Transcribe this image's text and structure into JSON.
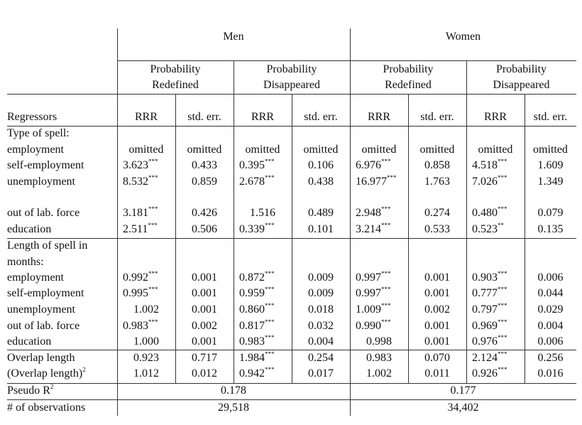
{
  "header": {
    "groups": [
      "Men",
      "Women"
    ],
    "subgroups": [
      [
        "Probability",
        "Redefined"
      ],
      [
        "Probability",
        "Disappeared"
      ],
      [
        "Probability",
        "Redefined"
      ],
      [
        "Probability",
        "Disappeared"
      ]
    ],
    "columns": [
      "Regressors",
      "RRR",
      "std. err.",
      "RRR",
      "std. err.",
      "RRR",
      "std. err.",
      "RRR",
      "std. err."
    ]
  },
  "rows": [
    {
      "label": "Type of spell:"
    },
    {
      "label": "employment",
      "cells": [
        "omitted",
        "omitted",
        "omitted",
        "omitted",
        "omitted",
        "omitted",
        "omitted",
        "omitted"
      ]
    },
    {
      "label": "self-employment",
      "cells": [
        {
          "v": "3.623",
          "s": "***"
        },
        "0.433",
        {
          "v": "0.395",
          "s": "***"
        },
        "0.106",
        {
          "v": "6.976",
          "s": "***"
        },
        "0.858",
        {
          "v": "4.518",
          "s": "***"
        },
        "1.609"
      ]
    },
    {
      "label": "unemployment",
      "cells": [
        {
          "v": "8.532",
          "s": "***"
        },
        "0.859",
        {
          "v": "2.678",
          "s": "***"
        },
        "0.438",
        {
          "v": "16.977",
          "s": "***"
        },
        "1.763",
        {
          "v": "7.026",
          "s": "***"
        },
        "1.349"
      ]
    },
    {
      "label": "out of lab. force",
      "cells": [
        {
          "v": "3.181",
          "s": "***"
        },
        "0.426",
        "1.516",
        "0.489",
        {
          "v": "2.948",
          "s": "***"
        },
        "0.274",
        {
          "v": "0.480",
          "s": "***"
        },
        "0.079"
      ]
    },
    {
      "label": "education",
      "cells": [
        {
          "v": "2.511",
          "s": "***"
        },
        "0.506",
        {
          "v": "0.339",
          "s": "***"
        },
        "0.101",
        {
          "v": "3.214",
          "s": "***"
        },
        "0.533",
        {
          "v": "0.523",
          "s": "**"
        },
        "0.135"
      ]
    },
    {
      "label": [
        "Length of spell in",
        "months:"
      ]
    },
    {
      "label": "employment",
      "cells": [
        {
          "v": "0.992",
          "s": "***"
        },
        "0.001",
        {
          "v": "0.872",
          "s": "***"
        },
        "0.009",
        {
          "v": "0.997",
          "s": "***"
        },
        "0.001",
        {
          "v": "0.903",
          "s": "***"
        },
        "0.006"
      ]
    },
    {
      "label": "self-employment",
      "cells": [
        {
          "v": "0.995",
          "s": "***"
        },
        "0.001",
        {
          "v": "0.959",
          "s": "***"
        },
        "0.009",
        {
          "v": "0.997",
          "s": "***"
        },
        "0.001",
        {
          "v": "0.777",
          "s": "***"
        },
        "0.044"
      ]
    },
    {
      "label": "unemployment",
      "cells": [
        "1.002",
        "0.001",
        {
          "v": "0.860",
          "s": "***"
        },
        "0.018",
        {
          "v": "1.009",
          "s": "***"
        },
        "0.002",
        {
          "v": "0.797",
          "s": "***"
        },
        "0.029"
      ]
    },
    {
      "label": "out of lab. force",
      "cells": [
        {
          "v": "0.983",
          "s": "***"
        },
        "0.002",
        {
          "v": "0.817",
          "s": "***"
        },
        "0.032",
        {
          "v": "0.990",
          "s": "***"
        },
        "0.001",
        {
          "v": "0.969",
          "s": "***"
        },
        "0.004"
      ]
    },
    {
      "label": "education",
      "cells": [
        "1.000",
        "0.001",
        {
          "v": "0.983",
          "s": "***"
        },
        "0.004",
        "0.998",
        "0.001",
        {
          "v": "0.976",
          "s": "***"
        },
        "0.006"
      ]
    },
    {
      "label": "Overlap length",
      "cells": [
        "0.923",
        "0.717",
        {
          "v": "1.984",
          "s": "***"
        },
        "0.254",
        "0.983",
        "0.070",
        {
          "v": "2.124",
          "s": "***"
        },
        "0.256"
      ]
    },
    {
      "label": {
        "text": "(Overlap length)",
        "sup": "2"
      },
      "cells": [
        "1.012",
        "0.012",
        {
          "v": "0.942",
          "s": "***"
        },
        "0.017",
        "1.002",
        "0.011",
        {
          "v": "0.926",
          "s": "***"
        },
        "0.016"
      ]
    },
    {
      "label": {
        "text": "Pseudo R",
        "sup": "2"
      },
      "men": "0.178",
      "women": "0.177"
    },
    {
      "label": "# of observations",
      "men": "29,518",
      "women": "34,402"
    }
  ]
}
